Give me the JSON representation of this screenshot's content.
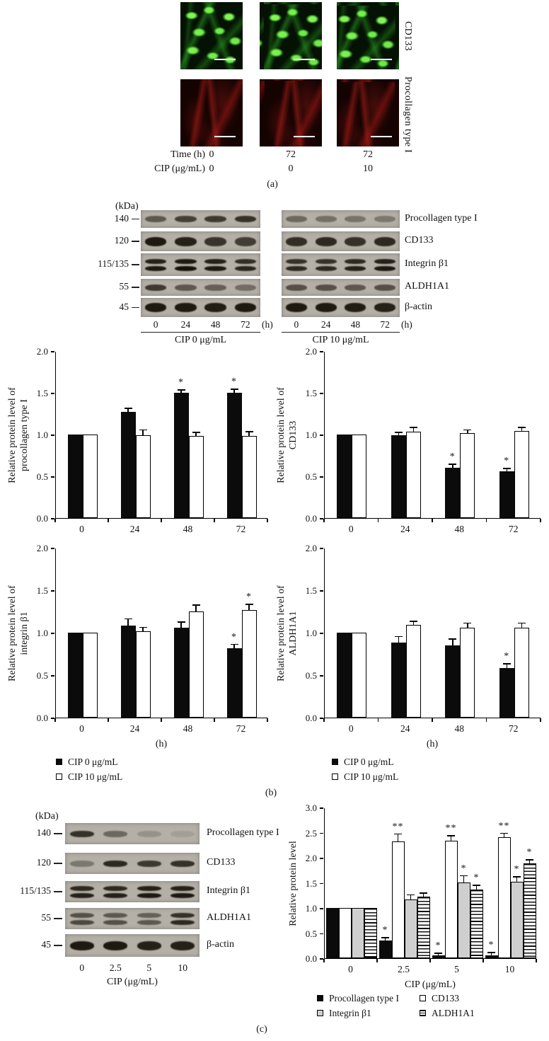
{
  "panel_a": {
    "label": "(a)",
    "row_labels": [
      "CD133",
      "Procollagen type I"
    ],
    "time_row": {
      "label": "Time (h)",
      "values": [
        "0",
        "72",
        "72"
      ]
    },
    "cip_row": {
      "label": "CIP (μg/mL)",
      "values": [
        "0",
        "0",
        "10"
      ]
    }
  },
  "panel_b": {
    "label": "(b)",
    "blot": {
      "kda_label": "(kDa)",
      "rows": [
        {
          "kda": "140",
          "protein": "Procollagen type I",
          "double": false,
          "thick": false,
          "left_intensities": [
            0.55,
            0.7,
            0.75,
            0.8
          ],
          "right_intensities": [
            0.45,
            0.4,
            0.38,
            0.35
          ]
        },
        {
          "kda": "120",
          "protein": "CD133",
          "double": false,
          "thick": true,
          "left_intensities": [
            0.95,
            0.9,
            0.78,
            0.72
          ],
          "right_intensities": [
            0.82,
            0.85,
            0.8,
            0.85
          ]
        },
        {
          "kda": "115/135",
          "protein": "Integrin β1",
          "double": true,
          "thick": false,
          "left_intensities": [
            0.9,
            0.95,
            0.9,
            0.82
          ],
          "right_intensities": [
            0.8,
            0.8,
            0.85,
            0.9
          ]
        },
        {
          "kda": "55",
          "protein": "ALDH1A1",
          "double": false,
          "thick": false,
          "left_intensities": [
            0.75,
            0.55,
            0.5,
            0.42
          ],
          "right_intensities": [
            0.6,
            0.6,
            0.55,
            0.6
          ]
        },
        {
          "kda": "45",
          "protein": "β-actin",
          "double": false,
          "thick": true,
          "left_intensities": [
            0.95,
            0.95,
            0.92,
            0.95
          ],
          "right_intensities": [
            0.95,
            0.95,
            0.92,
            0.9
          ]
        }
      ],
      "lane_labels": [
        "0",
        "24",
        "48",
        "72"
      ],
      "lane_unit": "(h)",
      "group_labels": [
        "CIP 0 μg/mL",
        "CIP 10 μg/mL"
      ]
    },
    "legend": [
      {
        "label": "CIP 0 μg/mL",
        "style": "black"
      },
      {
        "label": "CIP 10 μg/mL",
        "style": "white"
      }
    ]
  },
  "panel_c": {
    "label": "(c)",
    "blot": {
      "kda_label": "(kDa)",
      "rows": [
        {
          "kda": "140",
          "protein": "Procollagen type I",
          "double": false,
          "thick": false,
          "intensities": [
            0.8,
            0.45,
            0.18,
            0.1
          ]
        },
        {
          "kda": "120",
          "protein": "CD133",
          "double": false,
          "thick": false,
          "intensities": [
            0.35,
            0.85,
            0.75,
            0.8
          ]
        },
        {
          "kda": "115/135",
          "protein": "Integrin β1",
          "double": true,
          "thick": false,
          "intensities": [
            0.85,
            0.85,
            0.9,
            0.9
          ]
        },
        {
          "kda": "55",
          "protein": "ALDH1A1",
          "double": true,
          "thick": false,
          "intensities": [
            0.6,
            0.55,
            0.5,
            0.8
          ]
        },
        {
          "kda": "45",
          "protein": "β-actin",
          "double": false,
          "thick": true,
          "intensities": [
            0.95,
            0.95,
            0.9,
            0.9
          ]
        }
      ],
      "lane_labels": [
        "0",
        "2.5",
        "5",
        "10"
      ],
      "lane_axis_label": "CIP (μg/mL)"
    },
    "legend": [
      {
        "label": "Procollagen type I",
        "style": "black"
      },
      {
        "label": "CD133",
        "style": "white"
      },
      {
        "label": "Integrin β1",
        "style": "gray"
      },
      {
        "label": "ALDH1A1",
        "style": "striped"
      }
    ]
  },
  "chart_data": [
    {
      "id": "b-procollagen",
      "type": "bar",
      "ylabel": "Relative protein level of\nprocollagen type I",
      "xlabel": "",
      "categories": [
        "0",
        "24",
        "48",
        "72"
      ],
      "ylim": [
        0,
        2.0
      ],
      "ytick_step": 0.5,
      "legend_position": "below-left",
      "series": [
        {
          "name": "CIP 0 μg/mL",
          "style": "black",
          "values": [
            1.0,
            1.27,
            1.5,
            1.5
          ],
          "errors": [
            0,
            0.05,
            0.04,
            0.05
          ],
          "sig": [
            "",
            "",
            "*",
            "*"
          ]
        },
        {
          "name": "CIP 10 μg/mL",
          "style": "white",
          "values": [
            1.0,
            0.99,
            0.98,
            0.98
          ],
          "errors": [
            0,
            0.07,
            0.05,
            0.06
          ],
          "sig": [
            "",
            "",
            "",
            ""
          ]
        }
      ]
    },
    {
      "id": "b-cd133",
      "type": "bar",
      "ylabel": "Relative protein level of\nCD133",
      "xlabel": "",
      "categories": [
        "0",
        "24",
        "48",
        "72"
      ],
      "ylim": [
        0,
        2.0
      ],
      "ytick_step": 0.5,
      "legend_position": "below-left",
      "series": [
        {
          "name": "CIP 0 μg/mL",
          "style": "black",
          "values": [
            1.0,
            0.99,
            0.6,
            0.56
          ],
          "errors": [
            0,
            0.04,
            0.05,
            0.04
          ],
          "sig": [
            "",
            "",
            "*",
            "*"
          ]
        },
        {
          "name": "CIP 10 μg/mL",
          "style": "white",
          "values": [
            1.0,
            1.03,
            1.02,
            1.04
          ],
          "errors": [
            0,
            0.06,
            0.04,
            0.05
          ],
          "sig": [
            "",
            "",
            "",
            ""
          ]
        }
      ]
    },
    {
      "id": "b-integrin",
      "type": "bar",
      "ylabel": "Relative protein level of\nintegrin β1",
      "xlabel": "(h)",
      "categories": [
        "0",
        "24",
        "48",
        "72"
      ],
      "ylim": [
        0,
        2.0
      ],
      "ytick_step": 0.5,
      "legend_position": "below-left",
      "series": [
        {
          "name": "CIP 0 μg/mL",
          "style": "black",
          "values": [
            1.0,
            1.08,
            1.06,
            0.82
          ],
          "errors": [
            0,
            0.09,
            0.07,
            0.05
          ],
          "sig": [
            "",
            "",
            "",
            "*"
          ]
        },
        {
          "name": "CIP 10 μg/mL",
          "style": "white",
          "values": [
            1.0,
            1.02,
            1.25,
            1.27
          ],
          "errors": [
            0,
            0.05,
            0.08,
            0.07
          ],
          "sig": [
            "",
            "",
            "",
            "*"
          ]
        }
      ]
    },
    {
      "id": "b-aldh1a1",
      "type": "bar",
      "ylabel": "Relative protein level of\nALDH1A1",
      "xlabel": "(h)",
      "categories": [
        "0",
        "24",
        "48",
        "72"
      ],
      "ylim": [
        0,
        2.0
      ],
      "ytick_step": 0.5,
      "legend_position": "below-left",
      "series": [
        {
          "name": "CIP 0 μg/mL",
          "style": "black",
          "values": [
            1.0,
            0.88,
            0.85,
            0.58
          ],
          "errors": [
            0,
            0.08,
            0.08,
            0.06
          ],
          "sig": [
            "",
            "",
            "",
            "*"
          ]
        },
        {
          "name": "CIP 10 μg/mL",
          "style": "white",
          "values": [
            1.0,
            1.09,
            1.06,
            1.06
          ],
          "errors": [
            0,
            0.05,
            0.06,
            0.06
          ],
          "sig": [
            "",
            "",
            "",
            ""
          ]
        }
      ]
    },
    {
      "id": "c-dose-response",
      "type": "bar",
      "ylabel": "Relative protein level",
      "xlabel": "CIP (μg/mL)",
      "categories": [
        "0",
        "2.5",
        "5",
        "10"
      ],
      "ylim": [
        0,
        3.0
      ],
      "ytick_step": 0.5,
      "legend_position": "below",
      "series": [
        {
          "name": "Procollagen type I",
          "style": "black",
          "values": [
            1.0,
            0.35,
            0.05,
            0.05
          ],
          "errors": [
            0,
            0.07,
            0.06,
            0.07
          ],
          "sig": [
            "",
            "*",
            "*",
            "*"
          ]
        },
        {
          "name": "CD133",
          "style": "white",
          "values": [
            1.0,
            2.32,
            2.34,
            2.41
          ],
          "errors": [
            0,
            0.16,
            0.11,
            0.09
          ],
          "sig": [
            "",
            "**",
            "**",
            "**"
          ]
        },
        {
          "name": "Integrin β1",
          "style": "gray",
          "values": [
            1.0,
            1.17,
            1.51,
            1.52
          ],
          "errors": [
            0,
            0.1,
            0.14,
            0.11
          ],
          "sig": [
            "",
            "",
            "*",
            "*"
          ]
        },
        {
          "name": "ALDH1A1",
          "style": "striped",
          "values": [
            1.0,
            1.22,
            1.36,
            1.89
          ],
          "errors": [
            0,
            0.09,
            0.1,
            0.08
          ],
          "sig": [
            "",
            "",
            "*",
            "*"
          ]
        }
      ]
    }
  ],
  "colors": {
    "bar_black": "#0b0b0b",
    "bar_white": "#ffffff",
    "bar_gray": "#cfcfcf",
    "fluor_green": "#56e636",
    "fluor_red": "#8f1713",
    "blot_bg": "#b4afa7"
  }
}
